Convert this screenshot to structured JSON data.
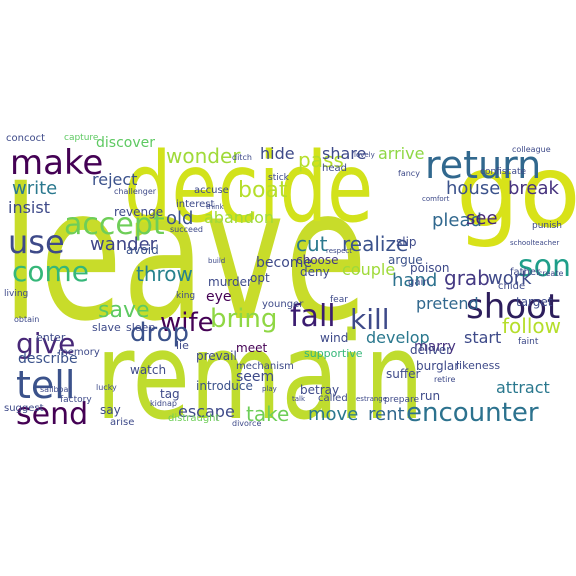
{
  "words": [
    {
      "text": "leave",
      "color": "#c8dc2a"
    },
    {
      "text": "remain",
      "color": "#bfdc2e"
    },
    {
      "text": "decide",
      "color": "#d2e21b"
    },
    {
      "text": "go",
      "color": "#d8e219"
    },
    {
      "text": "return",
      "color": "#31688e"
    },
    {
      "text": "make",
      "color": "#440154"
    },
    {
      "text": "tell",
      "color": "#3b528b"
    },
    {
      "text": "use",
      "color": "#3e4a89"
    },
    {
      "text": "come",
      "color": "#35b779"
    },
    {
      "text": "send",
      "color": "#440154"
    },
    {
      "text": "shoot",
      "color": "#2d1e5c"
    },
    {
      "text": "accept",
      "color": "#6ece58"
    },
    {
      "text": "son",
      "color": "#1f9e89"
    },
    {
      "text": "fall",
      "color": "#3b1c70"
    },
    {
      "text": "kill",
      "color": "#3e4a89"
    },
    {
      "text": "bring",
      "color": "#8fd744"
    },
    {
      "text": "wife",
      "color": "#440154"
    },
    {
      "text": "give",
      "color": "#482878"
    },
    {
      "text": "drop",
      "color": "#3b528b"
    },
    {
      "text": "encounter",
      "color": "#2c728e"
    },
    {
      "text": "boat",
      "color": "#b5de2b"
    },
    {
      "text": "follow",
      "color": "#b5de2b"
    },
    {
      "text": "save",
      "color": "#5ec962"
    },
    {
      "text": "house",
      "color": "#3b528b"
    },
    {
      "text": "break",
      "color": "#46327e"
    },
    {
      "text": "wonder",
      "color": "#a0da39"
    },
    {
      "text": "wander",
      "color": "#404688"
    },
    {
      "text": "write",
      "color": "#2a788e"
    },
    {
      "text": "insist",
      "color": "#3e4a89"
    },
    {
      "text": "cut",
      "color": "#2a788e"
    },
    {
      "text": "realize",
      "color": "#3b528b"
    },
    {
      "text": "plead",
      "color": "#31688e"
    },
    {
      "text": "grab",
      "color": "#443983"
    },
    {
      "text": "work",
      "color": "#3e4a89"
    },
    {
      "text": "see",
      "color": "#482878"
    },
    {
      "text": "pass",
      "color": "#b5de2b"
    },
    {
      "text": "hand",
      "color": "#2c728e"
    },
    {
      "text": "couple",
      "color": "#9fda3a"
    },
    {
      "text": "discover",
      "color": "#5ec962"
    },
    {
      "text": "share",
      "color": "#3e4a89"
    },
    {
      "text": "arrive",
      "color": "#8fd744"
    },
    {
      "text": "hide",
      "color": "#3e4a89"
    },
    {
      "text": "old",
      "color": "#3b528b"
    },
    {
      "text": "abandon",
      "color": "#a0da39"
    },
    {
      "text": "reject",
      "color": "#3b528b"
    },
    {
      "text": "throw",
      "color": "#26828e"
    },
    {
      "text": "pretend",
      "color": "#31688e"
    },
    {
      "text": "develop",
      "color": "#2a788e"
    },
    {
      "text": "start",
      "color": "#3e4a89"
    },
    {
      "text": "marry",
      "color": "#46327e"
    },
    {
      "text": "describe",
      "color": "#3b528b"
    },
    {
      "text": "become",
      "color": "#3e4a89"
    },
    {
      "text": "take",
      "color": "#6ece58"
    },
    {
      "text": "move",
      "color": "#2a788e"
    },
    {
      "text": "rent",
      "color": "#31688e"
    },
    {
      "text": "escape",
      "color": "#3e4a89"
    },
    {
      "text": "attract",
      "color": "#2a788e"
    },
    {
      "text": "watch",
      "color": "#3e4a89"
    },
    {
      "text": "revenge",
      "color": "#3e4a89"
    },
    {
      "text": "eye",
      "color": "#440154"
    },
    {
      "text": "avoid",
      "color": "#3b528b"
    },
    {
      "text": "opt",
      "color": "#3e4a89"
    },
    {
      "text": "seem",
      "color": "#3e4a89"
    },
    {
      "text": "choose",
      "color": "#443983"
    },
    {
      "text": "deny",
      "color": "#3e4a89"
    },
    {
      "text": "argue",
      "color": "#3b528b"
    },
    {
      "text": "poison",
      "color": "#3e4a89"
    },
    {
      "text": "gain",
      "color": "#3e4a89"
    },
    {
      "text": "slip",
      "color": "#3e4a89"
    },
    {
      "text": "target",
      "color": "#3e4a89"
    },
    {
      "text": "father",
      "color": "#3e4a89"
    },
    {
      "text": "chide",
      "color": "#3e4a89"
    },
    {
      "text": "murder",
      "color": "#3e4a89"
    },
    {
      "text": "meet",
      "color": "#440154"
    },
    {
      "text": "introduce",
      "color": "#3b528b"
    },
    {
      "text": "prevail",
      "color": "#3e4a89"
    },
    {
      "text": "suffer",
      "color": "#3e4a89"
    },
    {
      "text": "deliver",
      "color": "#3e4a89"
    },
    {
      "text": "burglar",
      "color": "#3e4a89"
    },
    {
      "text": "likeness",
      "color": "#3e4a89"
    },
    {
      "text": "betray",
      "color": "#3e4a89"
    },
    {
      "text": "tag",
      "color": "#3e4a89"
    },
    {
      "text": "say",
      "color": "#3e4a89"
    },
    {
      "text": "called",
      "color": "#3e4a89"
    },
    {
      "text": "run",
      "color": "#3e4a89"
    },
    {
      "text": "prepare",
      "color": "#3e4a89"
    },
    {
      "text": "mechanism",
      "color": "#3e4a89"
    },
    {
      "text": "supportive",
      "color": "#35b779"
    },
    {
      "text": "distraught",
      "color": "#6ece58"
    },
    {
      "text": "enter",
      "color": "#3e4a89"
    },
    {
      "text": "memory",
      "color": "#3e4a89"
    },
    {
      "text": "slave",
      "color": "#3e4a89"
    },
    {
      "text": "sleep",
      "color": "#3e4a89"
    },
    {
      "text": "lie",
      "color": "#3e4a89"
    },
    {
      "text": "wind",
      "color": "#3e4a89"
    },
    {
      "text": "younger",
      "color": "#3e4a89"
    },
    {
      "text": "suggest",
      "color": "#3e4a89"
    },
    {
      "text": "arise",
      "color": "#3e4a89"
    },
    {
      "text": "head",
      "color": "#3e4a89"
    },
    {
      "text": "interest",
      "color": "#3e4a89"
    },
    {
      "text": "accuse",
      "color": "#3e4a89"
    },
    {
      "text": "concoct",
      "color": "#3e4a89"
    },
    {
      "text": "capture",
      "color": "#5ec962"
    },
    {
      "text": "challenger",
      "color": "#3e4a89"
    },
    {
      "text": "colleague",
      "color": "#3e4a89"
    },
    {
      "text": "confiscate",
      "color": "#3e4a89"
    },
    {
      "text": "punish",
      "color": "#3e4a89"
    },
    {
      "text": "stick",
      "color": "#3e4a89"
    },
    {
      "text": "fancy",
      "color": "#3e4a89"
    },
    {
      "text": "schoolteacher",
      "color": "#3e4a89"
    },
    {
      "text": "king",
      "color": "#3e4a89"
    },
    {
      "text": "living",
      "color": "#3e4a89"
    },
    {
      "text": "obtain",
      "color": "#3e4a89"
    },
    {
      "text": "factory",
      "color": "#3e4a89"
    },
    {
      "text": "lucky",
      "color": "#3e4a89"
    },
    {
      "text": "kidnap",
      "color": "#3e4a89"
    },
    {
      "text": "play",
      "color": "#3e4a89"
    },
    {
      "text": "talk",
      "color": "#3e4a89"
    },
    {
      "text": "fear",
      "color": "#3e4a89"
    },
    {
      "text": "retire",
      "color": "#3e4a89"
    },
    {
      "text": "faint",
      "color": "#3e4a89"
    },
    {
      "text": "sailboat",
      "color": "#3e4a89"
    },
    {
      "text": "respect",
      "color": "#3e4a89"
    },
    {
      "text": "create",
      "color": "#3e4a89"
    },
    {
      "text": "estrange",
      "color": "#3e4a89"
    },
    {
      "text": "think",
      "color": "#3e4a89"
    },
    {
      "text": "succeed",
      "color": "#3e4a89"
    },
    {
      "text": "ditch",
      "color": "#3e4a89"
    },
    {
      "text": "lovely",
      "color": "#3e4a89"
    },
    {
      "text": "comfort",
      "color": "#3e4a89"
    },
    {
      "text": "build",
      "color": "#3e4a89"
    },
    {
      "text": "divorce",
      "color": "#3e4a89"
    }
  ]
}
